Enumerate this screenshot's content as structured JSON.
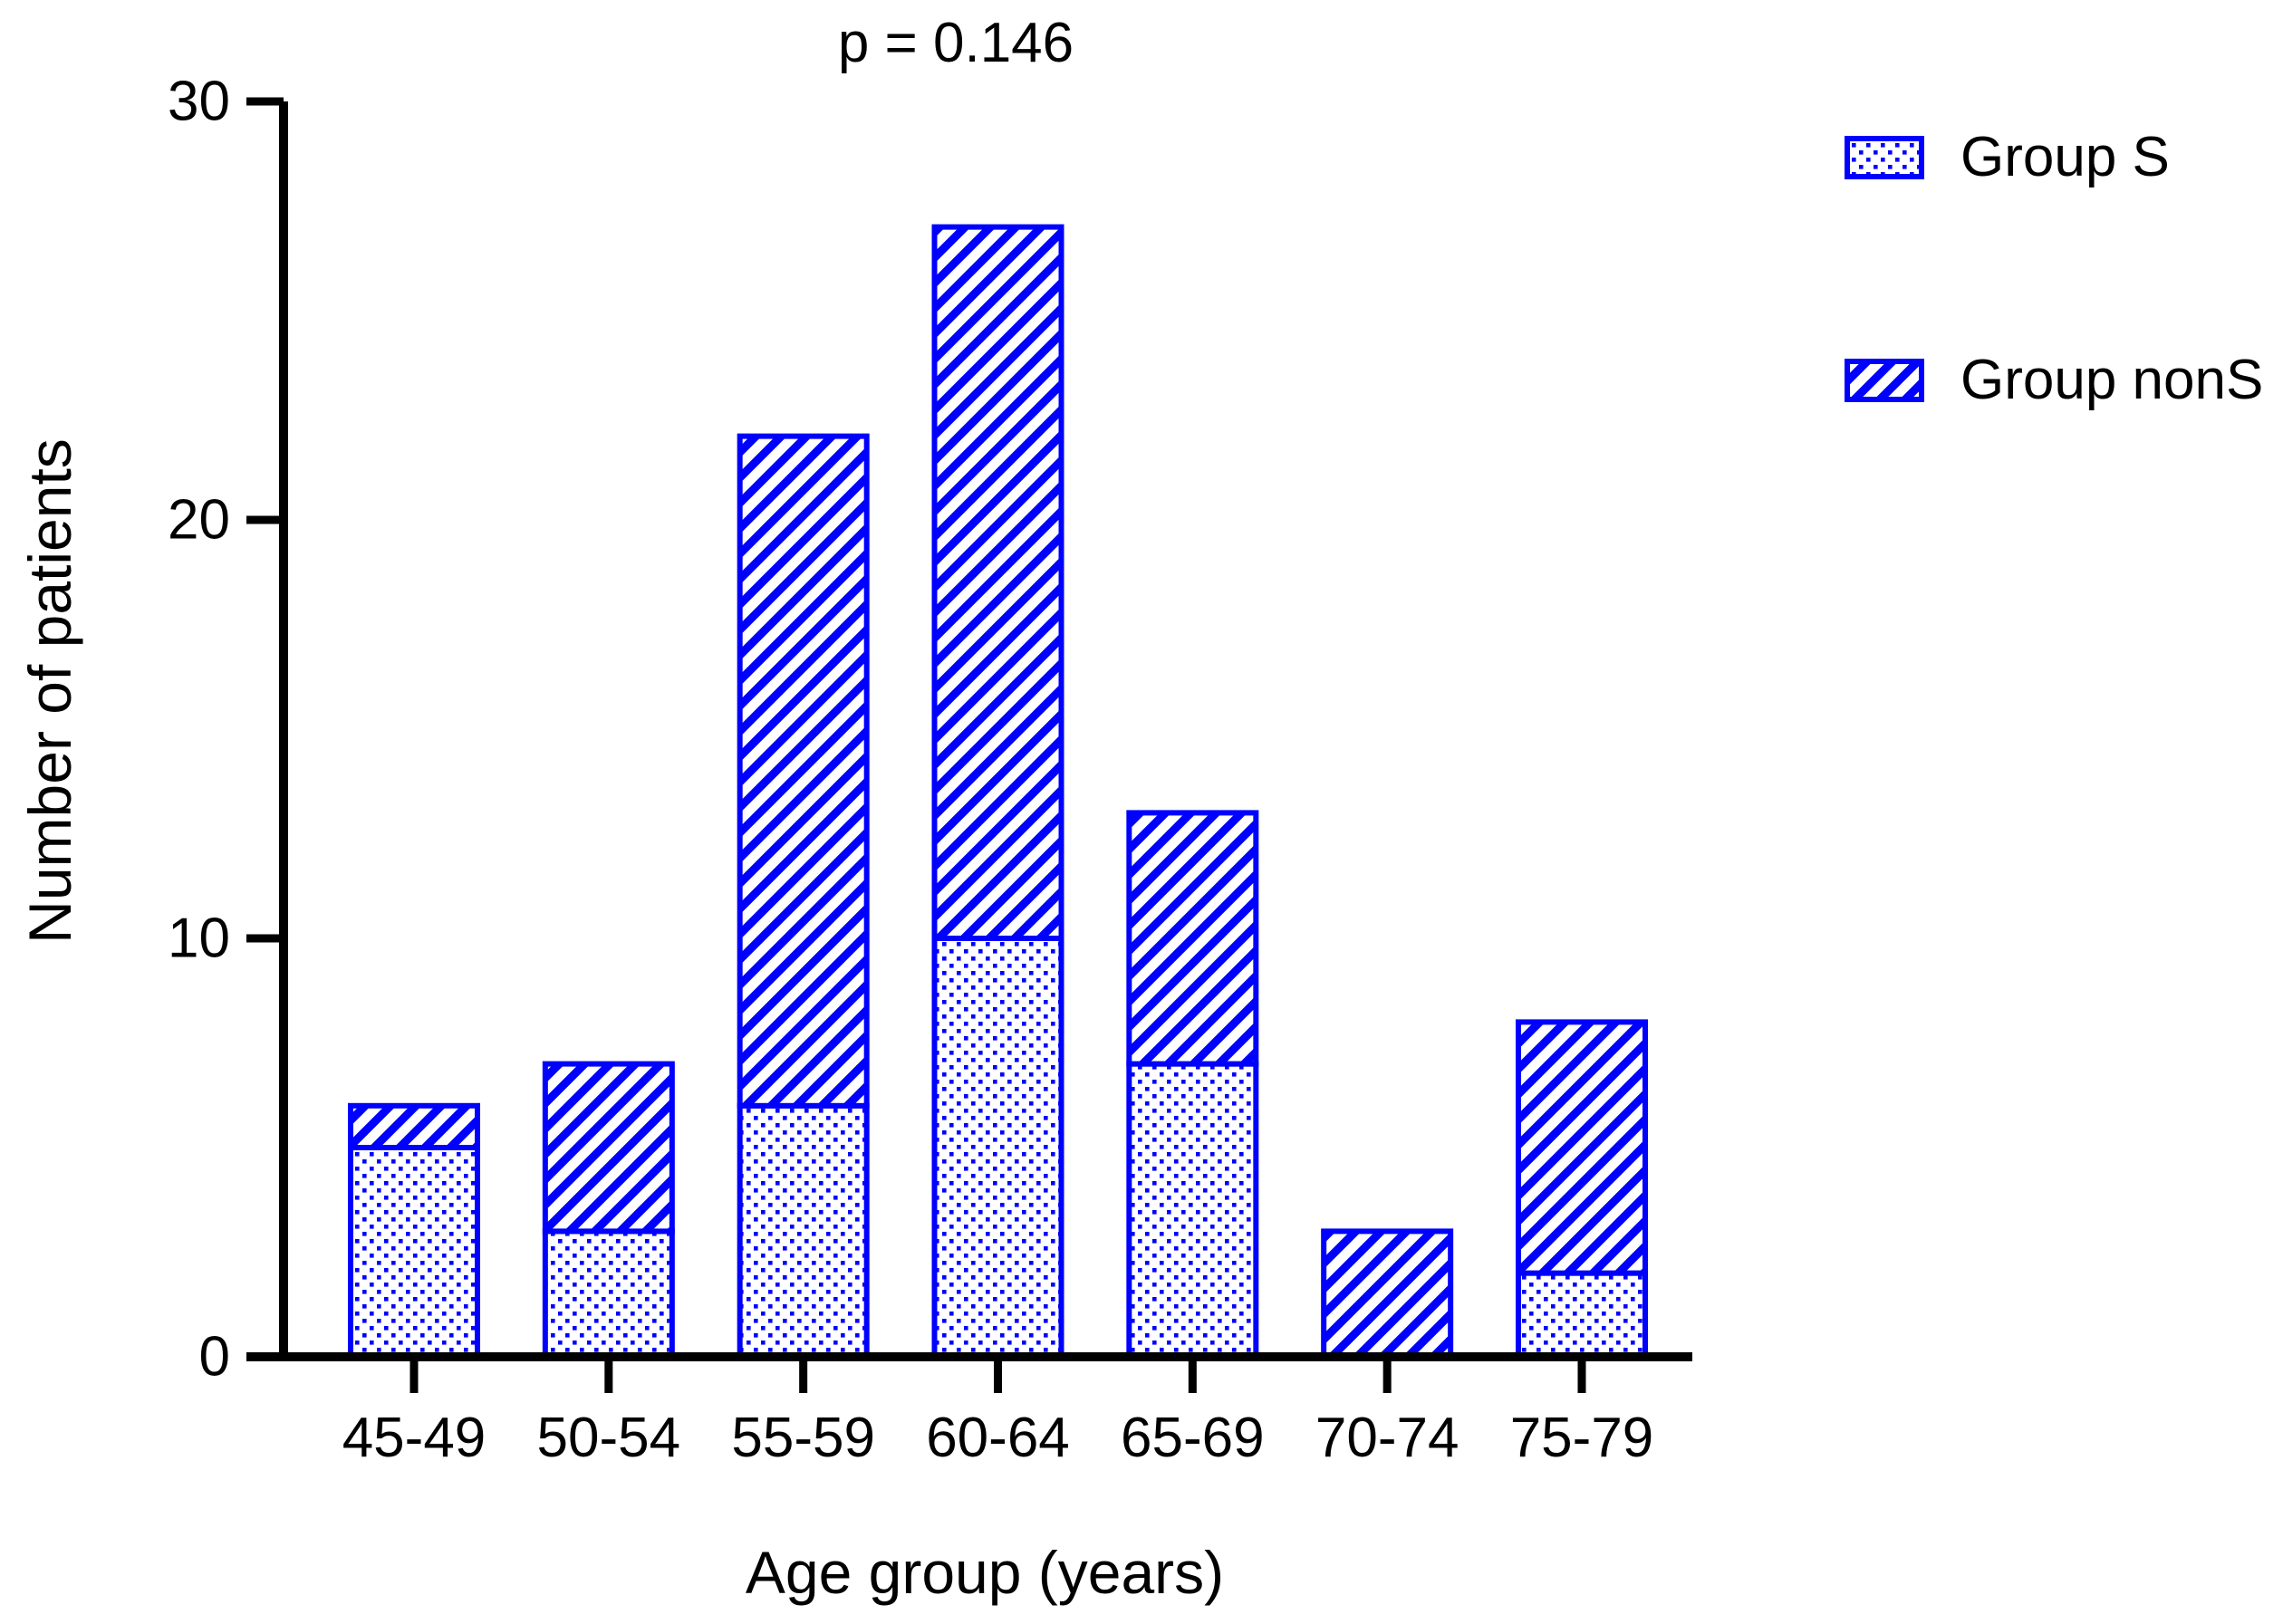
{
  "chart_data": {
    "type": "bar",
    "stacked": true,
    "title": "p = 0.146",
    "xlabel": "Age group (years)",
    "ylabel": "Number of patients",
    "categories": [
      "45-49",
      "50-54",
      "55-59",
      "60-64",
      "65-69",
      "70-74",
      "75-79"
    ],
    "series": [
      {
        "name": "Group S",
        "pattern": "dots",
        "values": [
          5,
          3,
          6,
          10,
          7,
          0,
          2
        ]
      },
      {
        "name": "Group nonS",
        "pattern": "diagonal-hatch",
        "values": [
          1,
          4,
          16,
          17,
          6,
          3,
          6
        ]
      }
    ],
    "totals": [
      6,
      7,
      22,
      27,
      13,
      3,
      8
    ],
    "ylim": [
      0,
      30
    ],
    "yticks": [
      0,
      10,
      20,
      30
    ],
    "grid": false,
    "legend_position": "top-right",
    "colors": {
      "accent": "#0000FF",
      "axis": "#000000",
      "background": "#FFFFFF"
    }
  }
}
